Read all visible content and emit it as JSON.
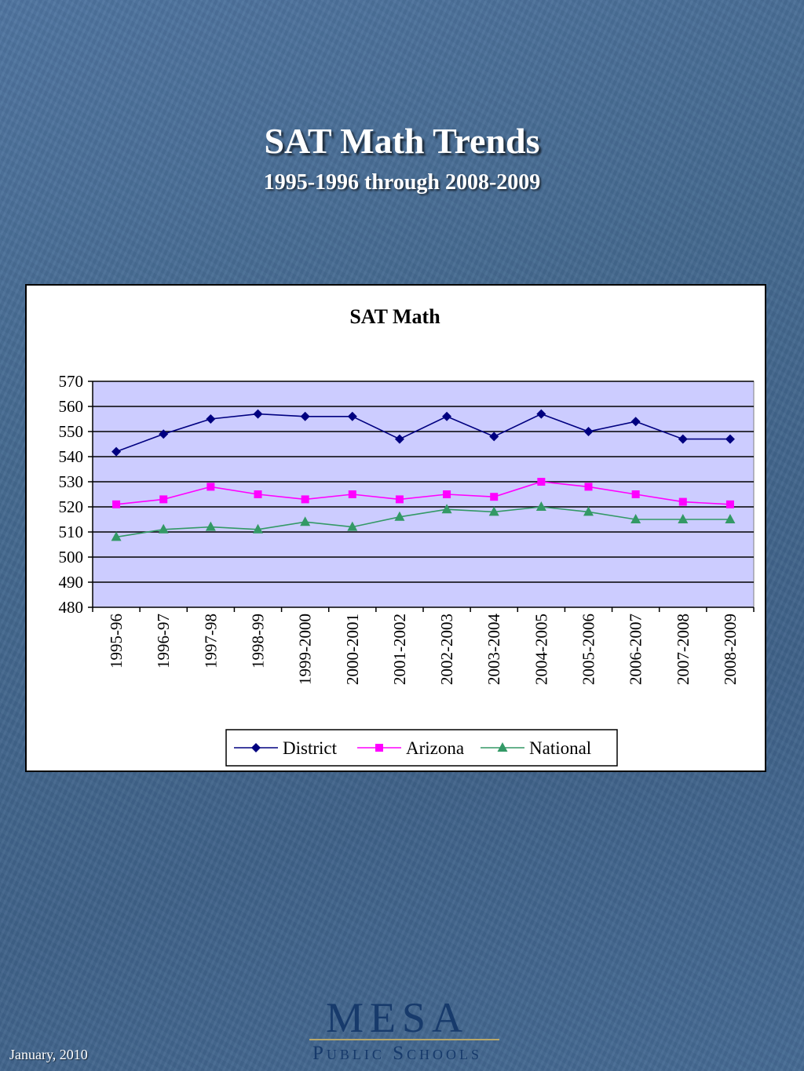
{
  "slide": {
    "title": "SAT Math Trends",
    "subtitle": "1995-1996 through 2008-2009",
    "footer_date": "January, 2010",
    "logo_main": "MESA",
    "logo_sub": "Public Schools"
  },
  "chart_data": {
    "type": "line",
    "title": "SAT Math",
    "xlabel": "",
    "ylabel": "",
    "ylim": [
      480,
      570
    ],
    "yticks": [
      570,
      560,
      550,
      540,
      530,
      520,
      510,
      500,
      490,
      480
    ],
    "categories": [
      "1995-96",
      "1996-97",
      "1997-98",
      "1998-99",
      "1999-2000",
      "2000-2001",
      "2001-2002",
      "2002-2003",
      "2003-2004",
      "2004-2005",
      "2005-2006",
      "2006-2007",
      "2007-2008",
      "2008-2009"
    ],
    "series": [
      {
        "name": "District",
        "color": "#000080",
        "marker": "diamond",
        "values": [
          542,
          549,
          555,
          557,
          556,
          556,
          547,
          556,
          548,
          557,
          550,
          554,
          547,
          547
        ]
      },
      {
        "name": "Arizona",
        "color": "#ff00ff",
        "marker": "square",
        "values": [
          521,
          523,
          528,
          525,
          523,
          525,
          523,
          525,
          524,
          530,
          528,
          525,
          522,
          521
        ]
      },
      {
        "name": "National",
        "color": "#339966",
        "marker": "triangle",
        "values": [
          508,
          511,
          512,
          511,
          514,
          512,
          516,
          519,
          518,
          520,
          518,
          515,
          515,
          515
        ]
      }
    ],
    "plot_background": "#ccccff",
    "grid": true,
    "legend_position": "bottom"
  }
}
